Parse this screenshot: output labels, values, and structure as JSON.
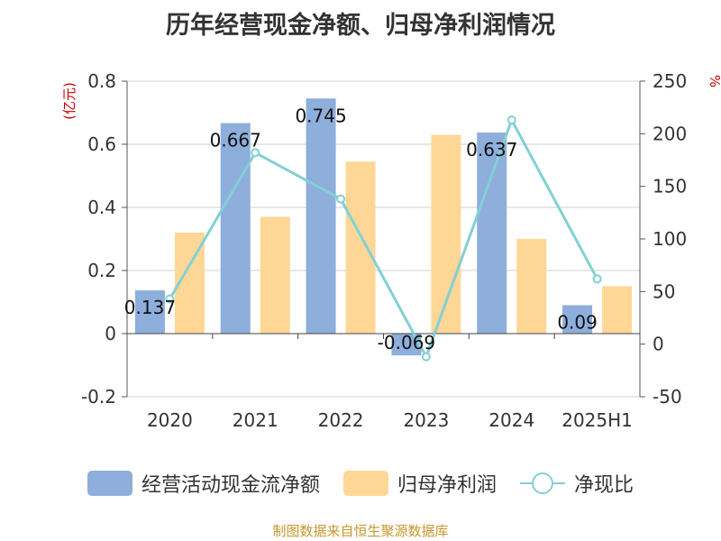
{
  "title": "历年经营现金净额、归母净利润情况",
  "source": "制图数据来自恒生聚源数据库",
  "chart_data": {
    "type": "bar",
    "categories": [
      "2020",
      "2021",
      "2022",
      "2023",
      "2024",
      "2025H1"
    ],
    "series": [
      {
        "name": "经营活动现金流净额",
        "type": "bar",
        "axis": "left",
        "color": "#8eaedb",
        "values": [
          0.137,
          0.667,
          0.745,
          -0.069,
          0.637,
          0.09
        ],
        "labels": [
          "0.137",
          "0.667",
          "0.745",
          "-0.069",
          "0.637",
          "0.09"
        ]
      },
      {
        "name": "归母净利润",
        "type": "bar",
        "axis": "left",
        "color": "#fed796",
        "values": [
          0.32,
          0.37,
          0.545,
          0.63,
          0.3,
          0.15
        ]
      },
      {
        "name": "净现比",
        "type": "line",
        "axis": "right",
        "color": "#82d0d4",
        "values": [
          43,
          182,
          138,
          -12,
          213,
          62
        ]
      }
    ],
    "y_left": {
      "label": "(亿元)",
      "ylim": [
        -0.2,
        0.8
      ],
      "ticks": [
        -0.2,
        0,
        0.2,
        0.4,
        0.6,
        0.8
      ],
      "tick_labels": [
        "-0.2",
        "0",
        "0.2",
        "0.4",
        "0.6",
        "0.8"
      ]
    },
    "y_right": {
      "label": "%",
      "ylim": [
        -50,
        250
      ],
      "ticks": [
        -50,
        0,
        50,
        100,
        150,
        200,
        250
      ],
      "tick_labels": [
        "-50",
        "0",
        "50",
        "100",
        "150",
        "200",
        "250"
      ]
    },
    "grid": true,
    "legend_position": "bottom"
  }
}
